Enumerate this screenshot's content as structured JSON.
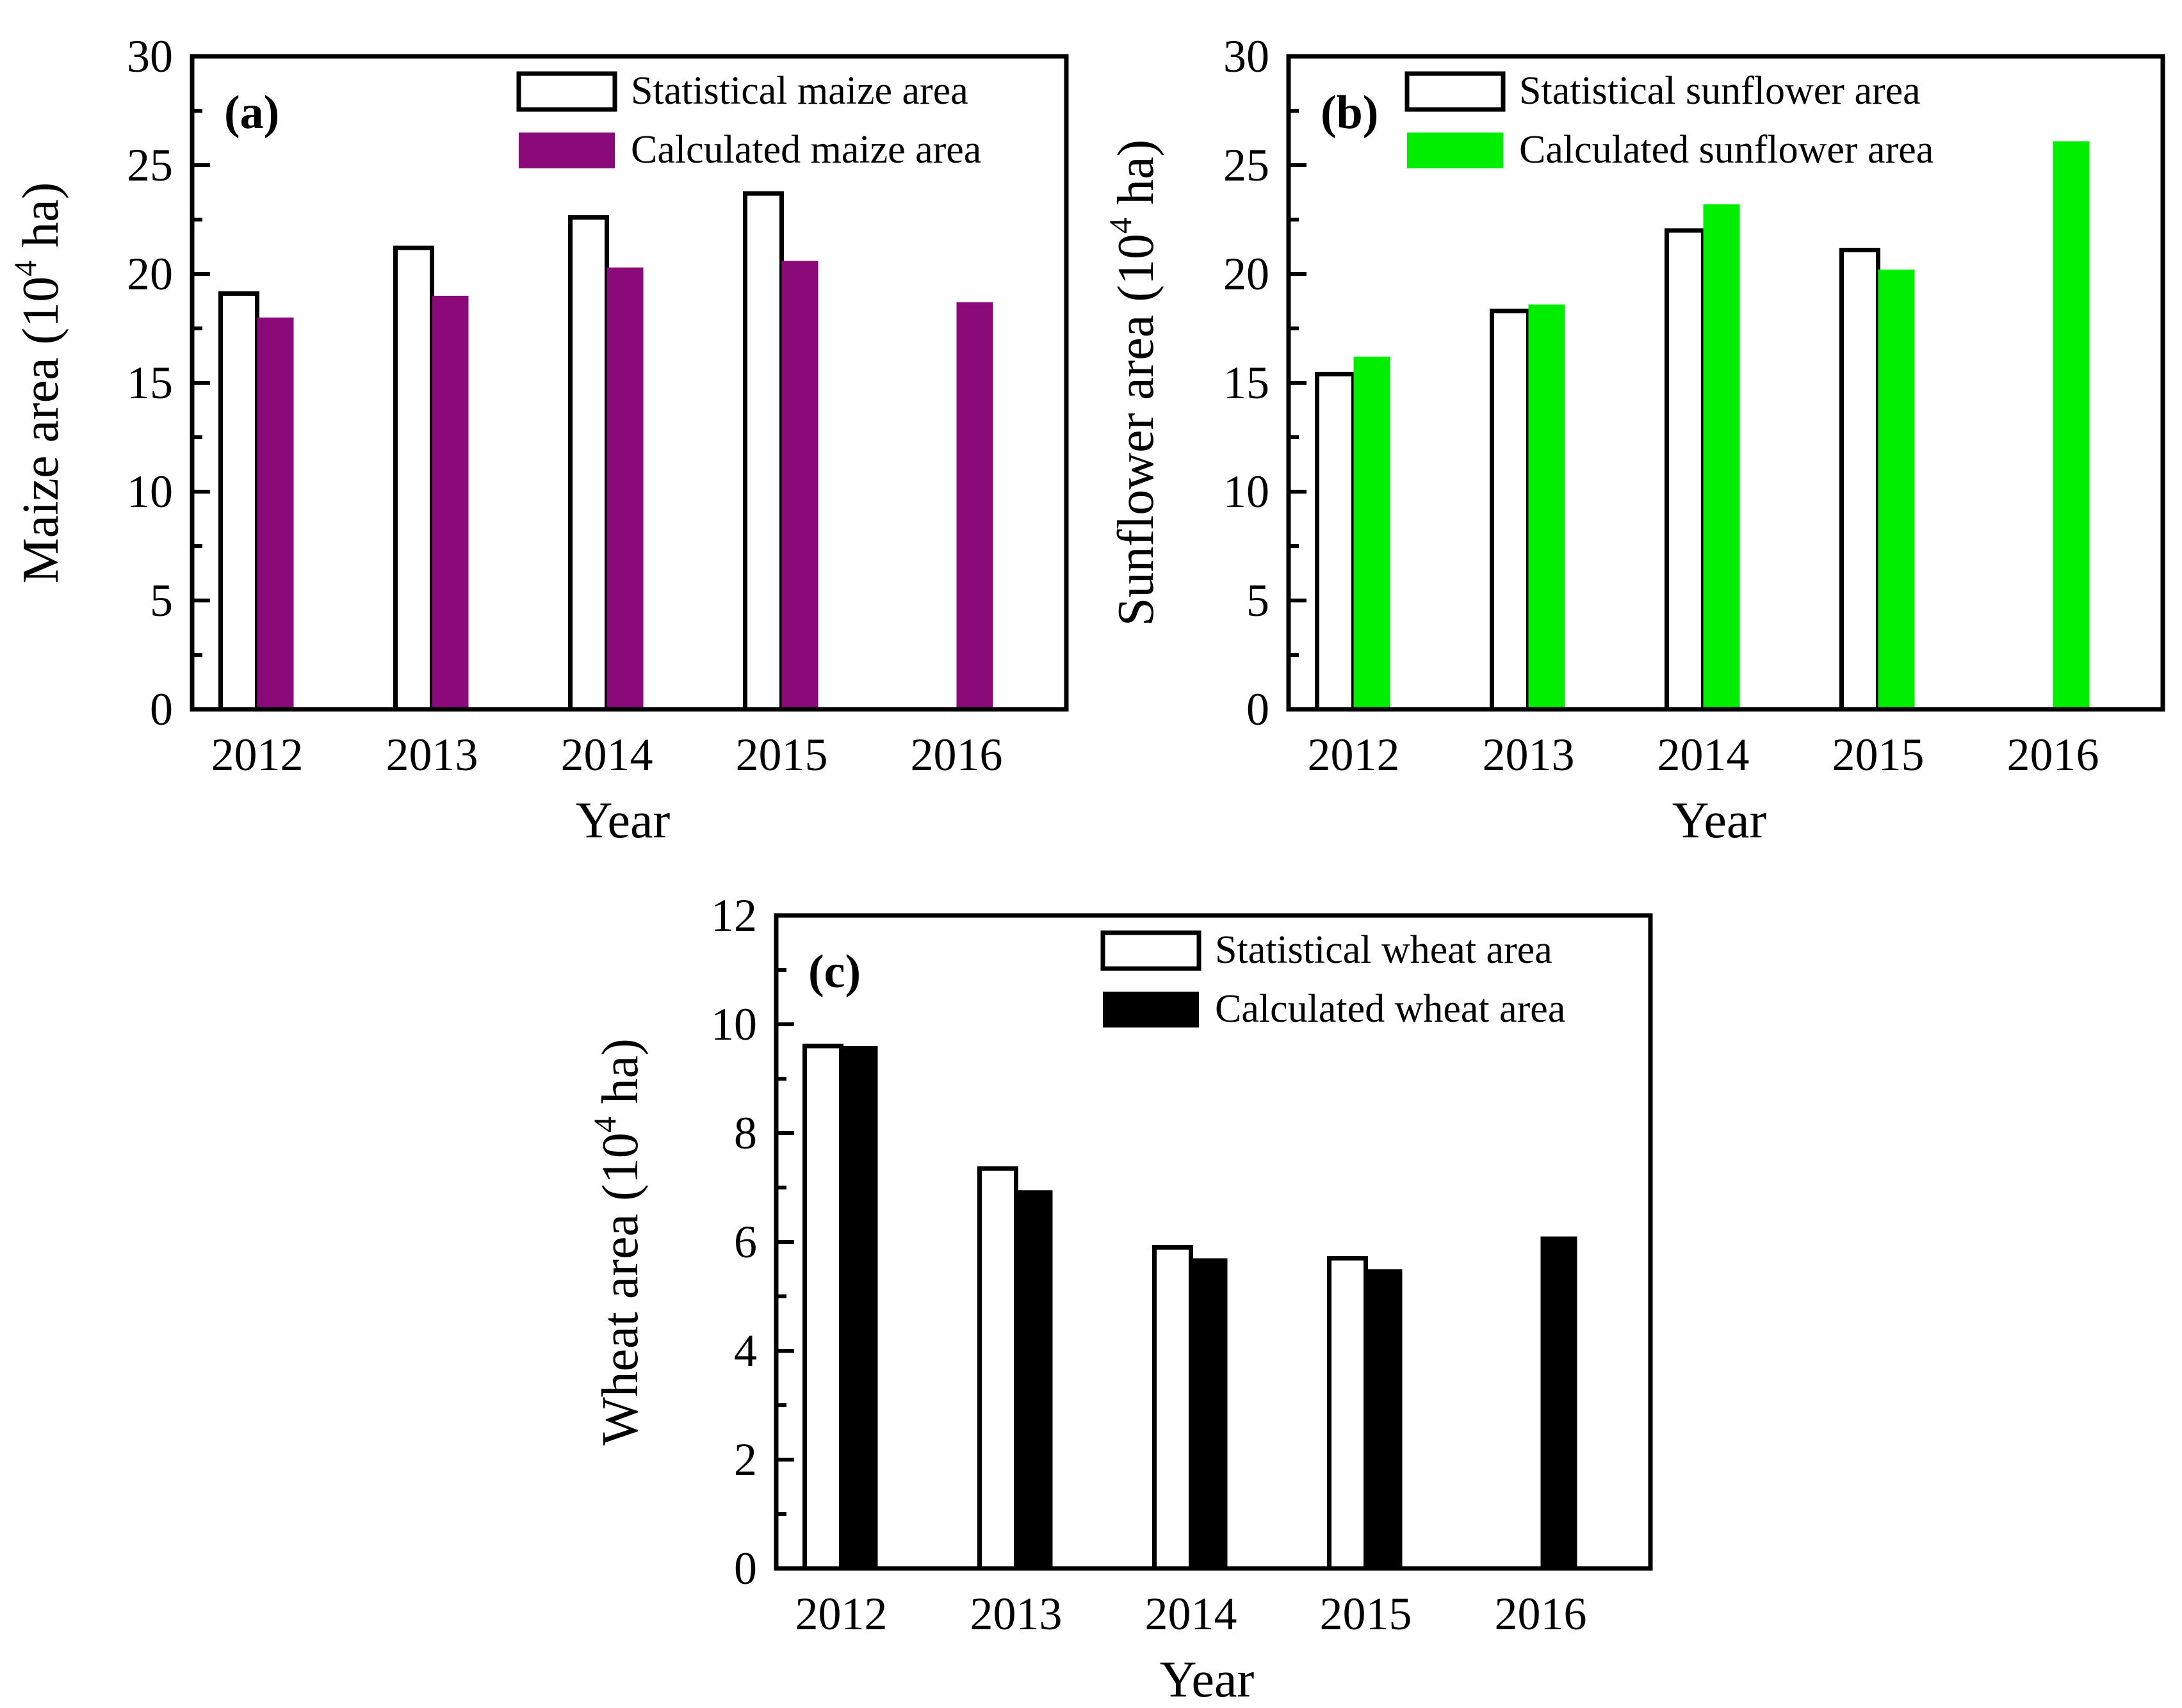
{
  "chart_data": [
    {
      "type": "bar",
      "panel_label": "(a)",
      "categories": [
        "2012",
        "2013",
        "2014",
        "2015",
        "2016"
      ],
      "series": [
        {
          "name": "Statistical maize area",
          "values": [
            19.1,
            21.2,
            22.6,
            23.7,
            null
          ],
          "color": "#ffffff"
        },
        {
          "name": "Calculated maize area",
          "values": [
            18.0,
            19.0,
            20.3,
            20.6,
            18.7
          ],
          "color": "#8b0a7a"
        }
      ],
      "xlabel": "Year",
      "ylabel_main": "Maize area (10",
      "ylabel_sup": "4",
      "ylabel_tail": " ha)",
      "ylim": [
        0,
        30
      ],
      "yticks": [
        "0",
        "5",
        "10",
        "15",
        "20",
        "25",
        "30"
      ],
      "grid": false,
      "legend_position": "top-right"
    },
    {
      "type": "bar",
      "panel_label": "(b)",
      "categories": [
        "2012",
        "2013",
        "2014",
        "2015",
        "2016"
      ],
      "series": [
        {
          "name": "Statistical sunflower area",
          "values": [
            15.4,
            18.3,
            22.0,
            21.1,
            null
          ],
          "color": "#ffffff"
        },
        {
          "name": "Calculated sunflower area",
          "values": [
            16.2,
            18.6,
            23.2,
            20.2,
            26.1
          ],
          "color": "#00ee00"
        }
      ],
      "xlabel": "Year",
      "ylabel_main": "Sunflower area (10",
      "ylabel_sup": "4",
      "ylabel_tail": " ha)",
      "ylim": [
        0,
        30
      ],
      "yticks": [
        "0",
        "5",
        "10",
        "15",
        "20",
        "25",
        "30"
      ],
      "grid": false,
      "legend_position": "top-right"
    },
    {
      "type": "bar",
      "panel_label": "(c)",
      "categories": [
        "2012",
        "2013",
        "2014",
        "2015",
        "2016"
      ],
      "series": [
        {
          "name": "Statistical wheat area",
          "values": [
            9.6,
            7.35,
            5.9,
            5.7,
            null
          ],
          "color": "#ffffff"
        },
        {
          "name": "Calculated wheat area",
          "values": [
            9.6,
            6.95,
            5.7,
            5.5,
            6.1
          ],
          "color": "#000000"
        }
      ],
      "xlabel": "Year",
      "ylabel_main": "Wheat area (10",
      "ylabel_sup": "4",
      "ylabel_tail": " ha)",
      "ylim": [
        0,
        12
      ],
      "yticks": [
        "0",
        "2",
        "4",
        "6",
        "8",
        "10",
        "12"
      ],
      "grid": false,
      "legend_position": "top-right"
    }
  ]
}
